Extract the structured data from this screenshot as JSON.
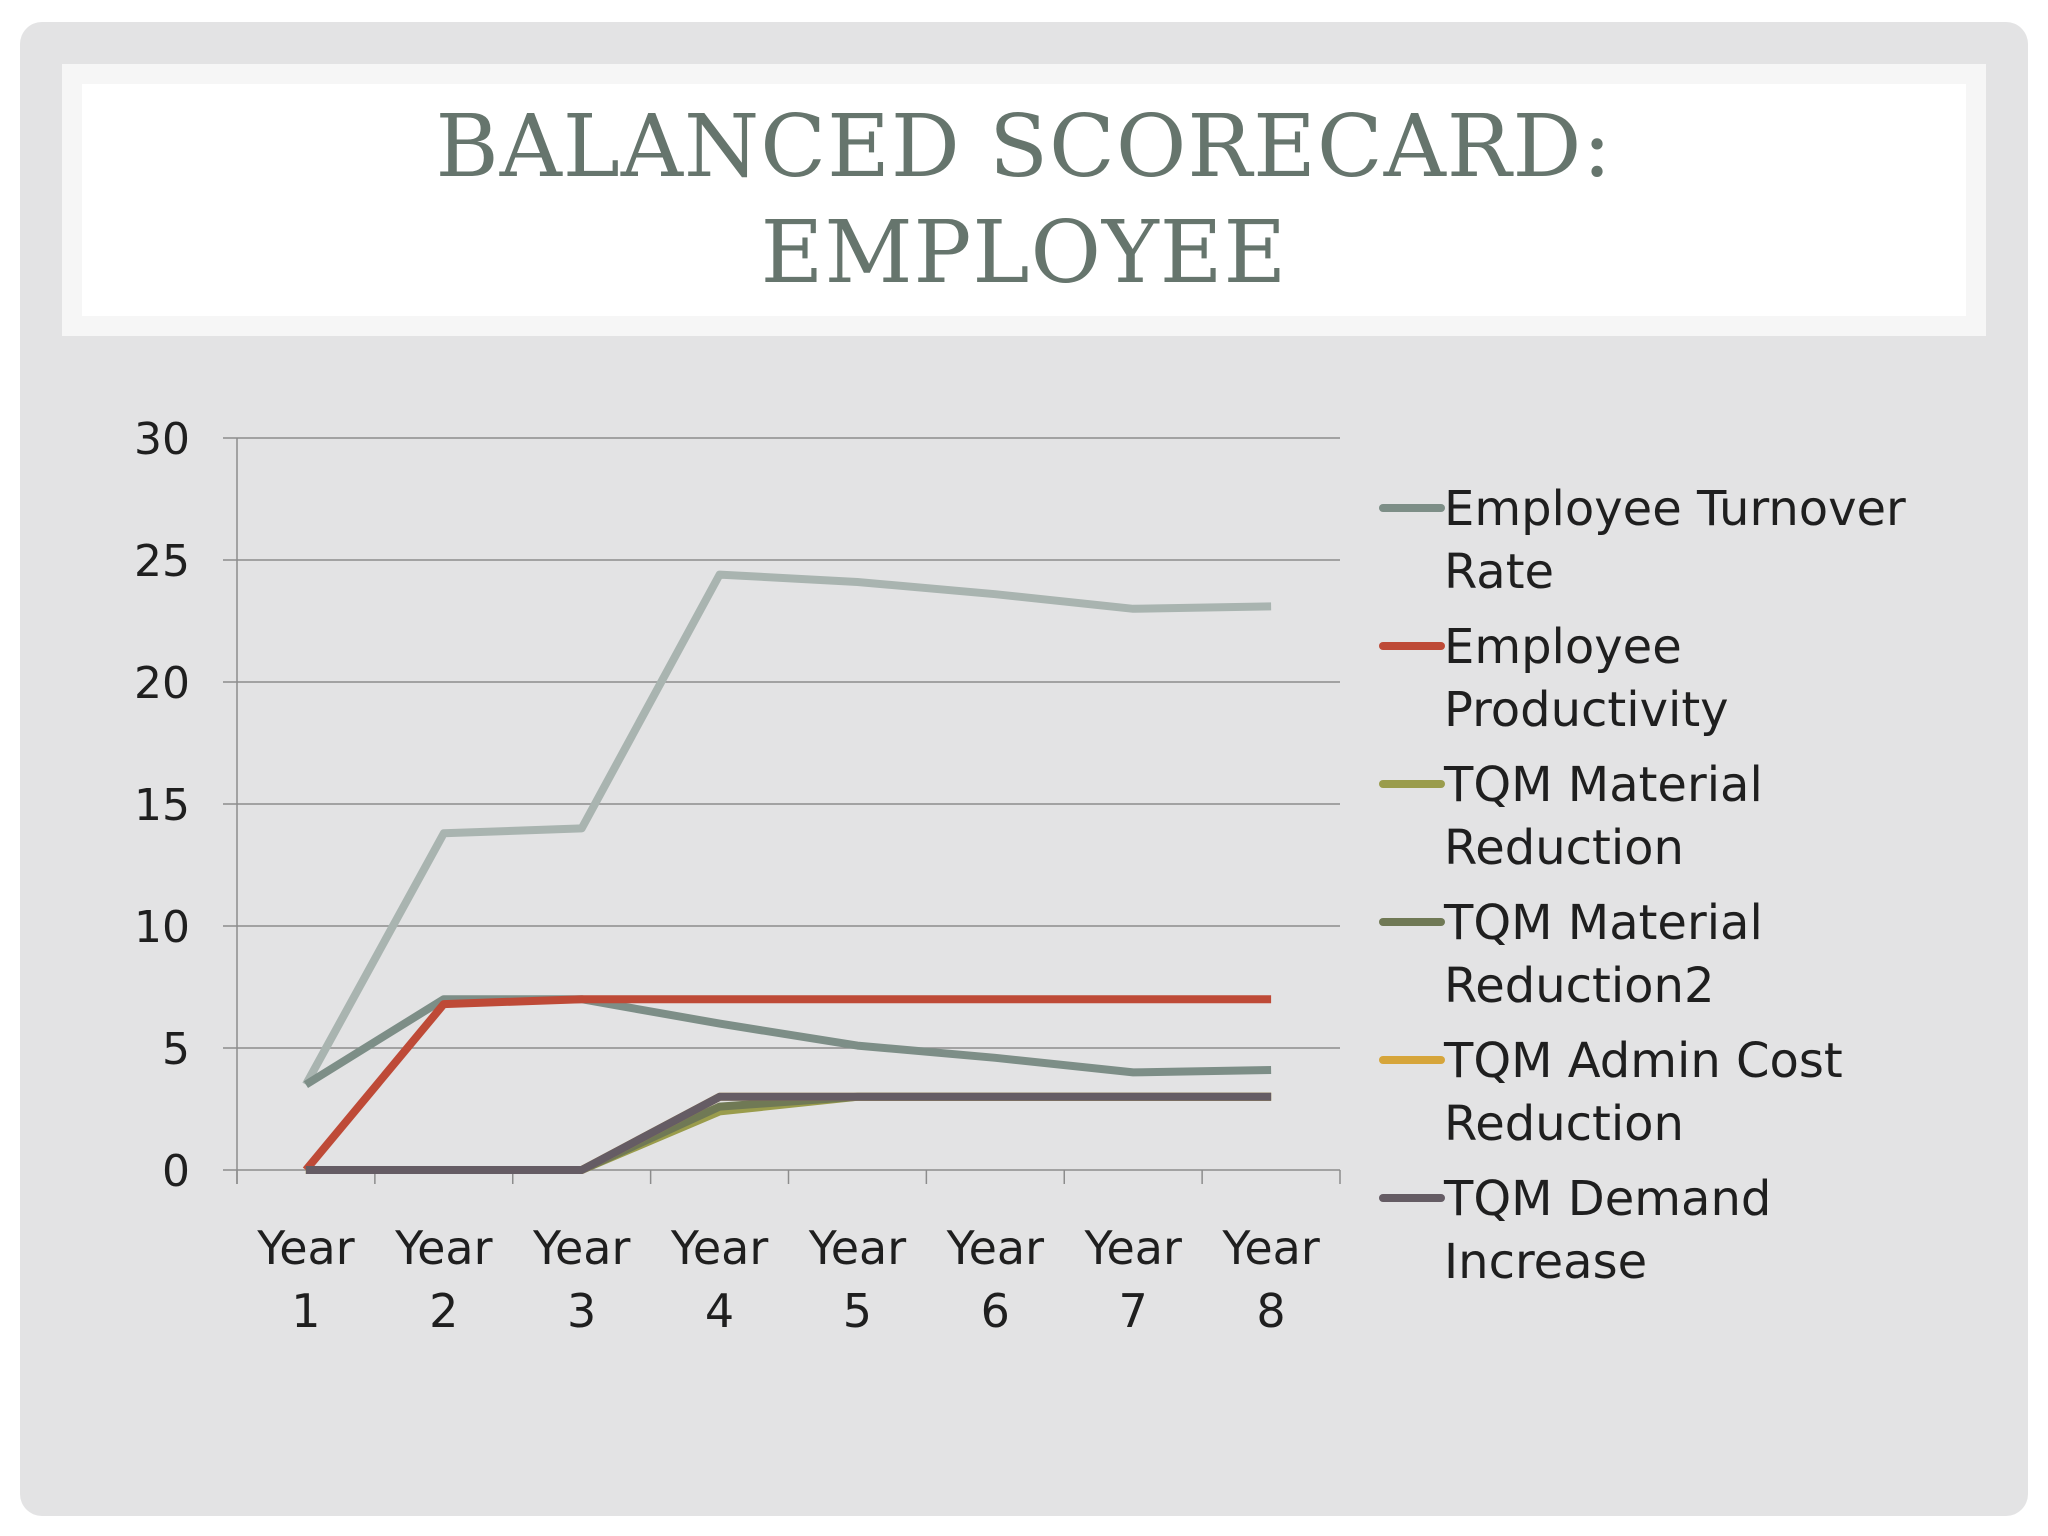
{
  "slide": {
    "title_line1": "BALANCED SCORECARD:",
    "title_line2": "EMPLOYEE"
  },
  "chart_data": {
    "type": "line",
    "title": "",
    "xlabel": "",
    "ylabel": "",
    "ylim": [
      0,
      30
    ],
    "yticks": [
      0,
      5,
      10,
      15,
      20,
      25,
      30
    ],
    "grid": true,
    "legend_position": "right",
    "categories": [
      [
        "Year",
        "1"
      ],
      [
        "Year",
        "2"
      ],
      [
        "Year",
        "3"
      ],
      [
        "Year",
        "4"
      ],
      [
        "Year",
        "5"
      ],
      [
        "Year",
        "6"
      ],
      [
        "Year",
        "7"
      ],
      [
        "Year",
        "8"
      ]
    ],
    "legend_series": [
      {
        "name": [
          "Employee Turnover",
          "Rate"
        ],
        "color": "#7d8e87",
        "values": [
          3.5,
          7,
          7,
          6,
          5.1,
          4.6,
          4,
          4.1
        ]
      },
      {
        "name": [
          "Employee",
          "Productivity"
        ],
        "color": "#be4a37",
        "values": [
          0,
          6.8,
          7,
          7,
          7,
          7,
          7,
          7
        ]
      },
      {
        "name": [
          "TQM Material",
          "Reduction"
        ],
        "color": "#9a9c4c",
        "values": [
          0,
          0,
          0,
          2.4,
          3,
          3,
          3,
          3
        ]
      },
      {
        "name": [
          "TQM Material",
          "Reduction2"
        ],
        "color": "#707955",
        "values": [
          0,
          0,
          0,
          2.6,
          3,
          3,
          3,
          3
        ]
      },
      {
        "name": [
          "TQM Admin Cost",
          "Reduction"
        ],
        "color": "#d6a53a",
        "values": [
          0,
          0,
          0,
          3,
          3,
          3,
          3,
          3
        ]
      },
      {
        "name": [
          "TQM Demand",
          "Increase"
        ],
        "color": "#655c64",
        "values": [
          0,
          0,
          0,
          3,
          3,
          3,
          3,
          3
        ]
      }
    ],
    "unlabeled_series": [
      {
        "name": "",
        "color": "#a9b4b0",
        "values": [
          3.5,
          13.8,
          14,
          24.4,
          24.1,
          23.6,
          23,
          23.1
        ]
      }
    ]
  }
}
